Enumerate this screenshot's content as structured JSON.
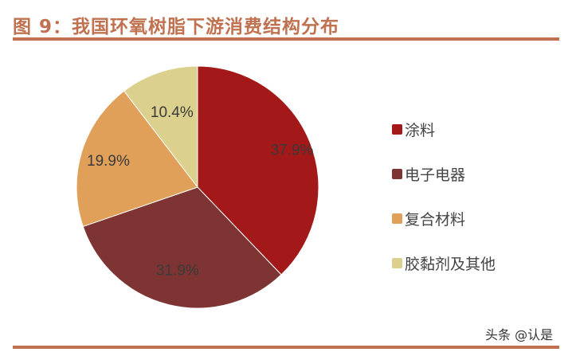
{
  "header": {
    "title": "图 9：我国环氧树脂下游消费结构分布"
  },
  "chart_data": {
    "type": "pie",
    "title": "图 9：我国环氧树脂下游消费结构分布",
    "categories": [
      "涂料",
      "电子电器",
      "复合材料",
      "胶黏剂及其他"
    ],
    "values": [
      37.9,
      31.9,
      19.9,
      10.4
    ],
    "labels": [
      "37.9%",
      "31.9%",
      "19.9%",
      "10.4%"
    ],
    "colors": [
      "#a31818",
      "#7f3434",
      "#e0a05a",
      "#dcd08e"
    ],
    "start_angle": "12 o'clock, clockwise",
    "legend_position": "right"
  },
  "legend": {
    "items": [
      {
        "label": "涂料",
        "color": "#a31818"
      },
      {
        "label": "电子电器",
        "color": "#7f3434"
      },
      {
        "label": "复合材料",
        "color": "#e0a05a"
      },
      {
        "label": "胶黏剂及其他",
        "color": "#dcd08e"
      }
    ]
  },
  "watermark": {
    "text": "头条 @认是"
  }
}
